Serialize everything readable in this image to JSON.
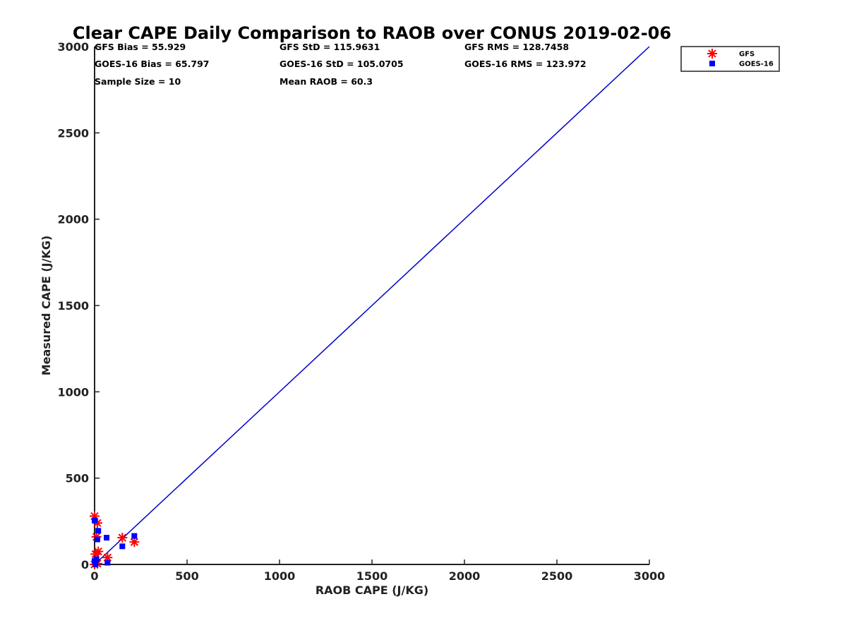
{
  "chart_data": {
    "type": "scatter",
    "title": "Clear CAPE Daily Comparison to RAOB over CONUS 2019-02-06",
    "xlabel": "RAOB CAPE (J/KG)",
    "ylabel": "Measured CAPE (J/KG)",
    "xlim": [
      0,
      3000
    ],
    "ylim": [
      0,
      3000
    ],
    "xticks": [
      "0",
      "500",
      "1000",
      "1500",
      "2000",
      "2500",
      "3000"
    ],
    "yticks": [
      "0",
      "500",
      "1000",
      "1500",
      "2000",
      "2500",
      "3000"
    ],
    "grid": false,
    "legend_position": "outside-top-right",
    "reference_line": {
      "x": [
        0,
        3000
      ],
      "y": [
        0,
        3000
      ],
      "color": "#0000cc"
    },
    "stats": [
      [
        "GFS Bias = 55.929",
        "GFS StD = 115.9631",
        "GFS RMS = 128.7458"
      ],
      [
        "GOES-16 Bias = 65.797",
        "GOES-16 StD = 105.0705",
        "GOES-16 RMS = 123.972"
      ],
      [
        "Sample Size = 10",
        "Mean RAOB = 60.3"
      ]
    ],
    "series": [
      {
        "name": "GFS",
        "marker": "asterisk",
        "color": "#ff0000",
        "x": [
          0,
          15,
          10,
          20,
          5,
          150,
          215,
          70,
          0,
          15
        ],
        "y": [
          280,
          240,
          160,
          75,
          60,
          155,
          130,
          40,
          0,
          5
        ]
      },
      {
        "name": "GOES-16",
        "marker": "square",
        "color": "#0000ff",
        "x": [
          0,
          20,
          15,
          65,
          10,
          150,
          215,
          70,
          5,
          0
        ],
        "y": [
          255,
          195,
          145,
          155,
          30,
          105,
          165,
          10,
          0,
          20
        ]
      }
    ]
  }
}
